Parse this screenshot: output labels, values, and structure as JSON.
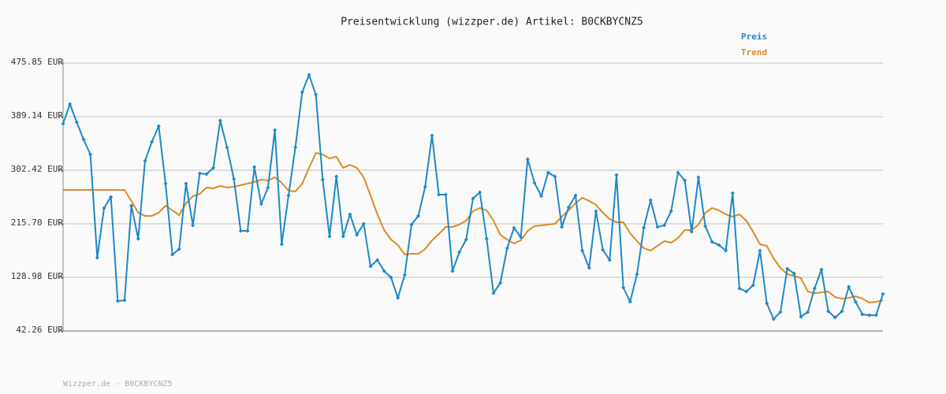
{
  "chart_data": {
    "type": "line",
    "title": "Preisentwicklung (wizzper.de) Artikel: B0CKBYCNZ5",
    "footer": "Wizzper.de - B0CKBYCNZ5",
    "categories": [
      null,
      null,
      null,
      null,
      null,
      null,
      null,
      null,
      null,
      null,
      null,
      null,
      null,
      null,
      null,
      null,
      null,
      null,
      null,
      null,
      null,
      null,
      null,
      null,
      null,
      null,
      null,
      null,
      null,
      null,
      null,
      null,
      null,
      null,
      null,
      null,
      null,
      null,
      null,
      null,
      null,
      null,
      null,
      null,
      null,
      null,
      null,
      null,
      null,
      null,
      null,
      null,
      null,
      null,
      null,
      null,
      null,
      null,
      null,
      null,
      null,
      null,
      null,
      null,
      null,
      null,
      null,
      null,
      null,
      null,
      null,
      null,
      null,
      null,
      null,
      null,
      null,
      null,
      null,
      null,
      null,
      null,
      null,
      null,
      null,
      null,
      null,
      null,
      null,
      null,
      null,
      null,
      null,
      null,
      null,
      null,
      null,
      null,
      null,
      null,
      null,
      null,
      null,
      null,
      null,
      null,
      null,
      null,
      null,
      null,
      null,
      null,
      null,
      null,
      null,
      null,
      null,
      null,
      null,
      null,
      null
    ],
    "series": [
      {
        "name": "Preis",
        "color": "#1e88c8",
        "markers": true,
        "values": [
          377.6,
          409.5,
          380.2,
          352.2,
          327.9,
          160.9,
          241.2,
          259.1,
          90.7,
          92.0,
          245.0,
          191.5,
          317.7,
          348.3,
          373.8,
          280.7,
          166.0,
          174.9,
          280.7,
          213.2,
          297.3,
          296.0,
          306.2,
          382.8,
          339.4,
          288.4,
          204.2,
          204.2,
          307.5,
          247.6,
          274.4,
          367.5,
          182.5,
          261.6,
          339.4,
          428.7,
          456.7,
          424.8,
          287.1,
          195.3,
          292.2,
          195.3,
          231.0,
          197.8,
          215.7,
          146.8,
          157.0,
          139.2,
          129.0,
          95.8,
          132.8,
          214.4,
          228.5,
          275.6,
          358.5,
          262.9,
          262.9,
          139.2,
          169.8,
          190.2,
          256.5,
          266.7,
          191.5,
          103.5,
          120.1,
          176.2,
          209.3,
          194.0,
          320.3,
          282.0,
          260.4,
          298.6,
          292.2,
          210.6,
          242.5,
          261.6,
          172.3,
          144.3,
          236.1,
          173.6,
          157.0,
          294.8,
          112.4,
          89.4,
          134.1,
          209.3,
          254.0,
          210.6,
          213.2,
          236.1,
          298.6,
          285.8,
          202.9,
          290.9,
          211.9,
          186.4,
          181.3,
          172.3,
          265.4,
          111.1,
          106.0,
          116.2,
          172.3,
          86.9,
          61.4,
          72.9,
          143.0,
          135.4,
          65.2,
          72.9,
          111.1,
          141.7,
          74.1,
          63.9,
          74.1,
          113.7,
          89.4,
          69.0,
          67.8,
          67.8,
          102.2
        ]
      },
      {
        "name": "Trend",
        "color": "#e08a1e",
        "markers": false,
        "values": [
          270.5,
          270.5,
          270.5,
          270.5,
          270.5,
          270.5,
          270.5,
          270.5,
          270.5,
          270.5,
          252.7,
          233.6,
          228.5,
          228.5,
          233.6,
          245.0,
          237.4,
          229.7,
          248.9,
          260.4,
          264.2,
          274.4,
          273.1,
          277.0,
          274.4,
          275.6,
          278.2,
          280.7,
          283.3,
          287.1,
          285.8,
          290.9,
          282.0,
          269.2,
          268.0,
          280.7,
          306.2,
          330.5,
          327.9,
          321.6,
          324.1,
          306.2,
          311.3,
          306.2,
          290.9,
          261.6,
          231.0,
          205.5,
          190.2,
          181.3,
          166.0,
          167.2,
          167.2,
          174.9,
          188.9,
          199.1,
          210.6,
          210.6,
          214.4,
          220.8,
          236.1,
          241.2,
          237.4,
          220.8,
          197.8,
          190.2,
          183.8,
          188.9,
          204.2,
          211.9,
          213.2,
          214.4,
          215.7,
          227.2,
          237.4,
          248.9,
          257.8,
          252.7,
          246.3,
          233.6,
          223.4,
          218.3,
          218.3,
          200.4,
          187.6,
          176.2,
          172.3,
          180.0,
          187.6,
          185.1,
          192.7,
          205.5,
          205.5,
          214.4,
          233.6,
          241.2,
          237.4,
          231.0,
          227.2,
          231.0,
          220.8,
          202.9,
          182.5,
          180.0,
          159.6,
          144.3,
          134.1,
          131.5,
          127.7,
          106.0,
          103.5,
          104.7,
          106.0,
          97.1,
          94.6,
          95.8,
          98.4,
          94.6,
          88.2,
          89.4,
          92.0
        ]
      }
    ],
    "ylim": [
      42.26,
      475.85
    ],
    "yticks": [
      {
        "value": 42.26,
        "label": "42.26 EUR"
      },
      {
        "value": 128.98,
        "label": "128.98 EUR"
      },
      {
        "value": 215.7,
        "label": "215.70 EUR"
      },
      {
        "value": 302.42,
        "label": "302.42 EUR"
      },
      {
        "value": 389.14,
        "label": "389.14 EUR"
      },
      {
        "value": 475.85,
        "label": "475.85 EUR"
      }
    ],
    "grid": true,
    "legend": "top-right"
  }
}
